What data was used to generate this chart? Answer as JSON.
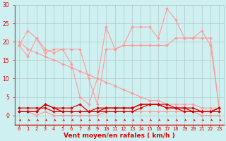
{
  "x": [
    0,
    1,
    2,
    3,
    4,
    5,
    6,
    7,
    8,
    9,
    10,
    11,
    12,
    13,
    14,
    15,
    16,
    17,
    18,
    19,
    20,
    21,
    22,
    23
  ],
  "line1": [
    19,
    23,
    21,
    17,
    18,
    18,
    14,
    5,
    3,
    10,
    24,
    18,
    19,
    24,
    24,
    24,
    21,
    29,
    26,
    21,
    21,
    23,
    19,
    2
  ],
  "line2": [
    19,
    16,
    21,
    18,
    17,
    18,
    18,
    18,
    10,
    3,
    18,
    18,
    19,
    19,
    19,
    19,
    19,
    19,
    21,
    21,
    21,
    21,
    21,
    2
  ],
  "line3": [
    20,
    18,
    17,
    16,
    15,
    14,
    13,
    12,
    11,
    10,
    9,
    8,
    7,
    6,
    5,
    4,
    4,
    3,
    3,
    3,
    3,
    2,
    2,
    2
  ],
  "line4": [
    1,
    1,
    1,
    3,
    2,
    2,
    2,
    3,
    1,
    2,
    2,
    2,
    2,
    2,
    3,
    3,
    3,
    2,
    2,
    2,
    2,
    1,
    1,
    2
  ],
  "line5": [
    1,
    1,
    0,
    1,
    0,
    0,
    0,
    0,
    0,
    0,
    1,
    1,
    1,
    1,
    1,
    1,
    1,
    1,
    1,
    1,
    1,
    0,
    0,
    0
  ],
  "line6": [
    2,
    2,
    2,
    2,
    1,
    1,
    1,
    1,
    1,
    1,
    1,
    1,
    1,
    1,
    2,
    3,
    3,
    3,
    2,
    1,
    1,
    1,
    1,
    2
  ],
  "line7": [
    1,
    1,
    1,
    3,
    2,
    1,
    1,
    1,
    1,
    1,
    2,
    2,
    2,
    2,
    3,
    3,
    3,
    2,
    2,
    2,
    1,
    1,
    1,
    1
  ],
  "ylim_min": 0,
  "ylim_max": 30,
  "yticks": [
    0,
    5,
    10,
    15,
    20,
    25,
    30
  ],
  "xlim_min": 0,
  "xlim_max": 23,
  "bg_color": "#cff0f0",
  "grid_color": "#b0c8c8",
  "light_red": "#ff9999",
  "dark_red": "#dd0000",
  "xlabel": "Vent moyen/en rafales ( km/h )"
}
